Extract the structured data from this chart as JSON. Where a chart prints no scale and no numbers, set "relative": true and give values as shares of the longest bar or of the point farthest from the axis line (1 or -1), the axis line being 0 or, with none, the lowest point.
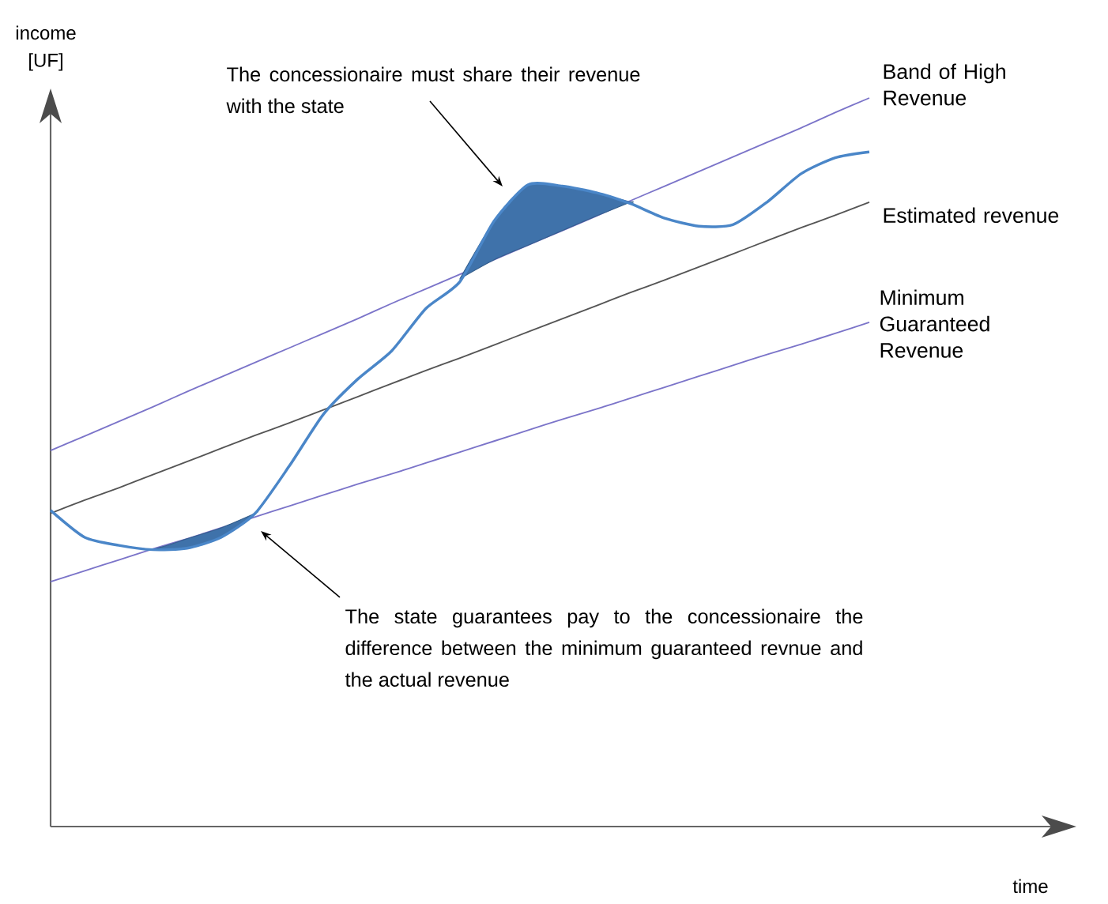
{
  "chart_data": {
    "type": "line",
    "relative": true,
    "ylabel": "income [UF]",
    "categories": [
      null,
      null,
      null,
      null,
      null,
      null,
      null,
      null,
      null,
      null,
      null,
      null,
      null,
      null,
      null,
      null,
      null,
      null,
      null,
      null,
      null,
      null,
      null,
      null,
      null
    ],
    "series": [
      {
        "name": "Band of High Revenue",
        "color": "#7b74c9",
        "values": [
          0.516,
          0.536,
          0.556,
          0.576,
          0.597,
          0.617,
          0.637,
          0.657,
          0.677,
          0.697,
          0.718,
          0.738,
          0.758,
          0.778,
          0.798,
          0.818,
          0.838,
          0.859,
          0.879,
          0.899,
          0.919,
          0.939,
          0.959,
          0.98,
          1.0
        ]
      },
      {
        "name": "Estimated revenue",
        "color": "#555555",
        "values": [
          0.43,
          0.448,
          0.465,
          0.483,
          0.501,
          0.519,
          0.537,
          0.554,
          0.572,
          0.59,
          0.608,
          0.626,
          0.643,
          0.661,
          0.679,
          0.697,
          0.715,
          0.733,
          0.75,
          0.768,
          0.786,
          0.804,
          0.822,
          0.839,
          0.857
        ]
      },
      {
        "name": "Minimum Guaranteed Revenue",
        "color": "#7b74c9",
        "values": [
          0.336,
          0.351,
          0.366,
          0.381,
          0.395,
          0.41,
          0.425,
          0.44,
          0.455,
          0.47,
          0.484,
          0.499,
          0.514,
          0.529,
          0.544,
          0.559,
          0.573,
          0.588,
          0.603,
          0.618,
          0.633,
          0.648,
          0.662,
          0.677,
          0.692
        ]
      },
      {
        "color": "#4a86c8",
        "values": [
          0.434,
          0.397,
          0.386,
          0.38,
          0.382,
          0.397,
          0.43,
          0.495,
          0.566,
          0.614,
          0.653,
          0.711,
          0.748,
          0.831,
          0.881,
          0.879,
          0.87,
          0.855,
          0.835,
          0.824,
          0.826,
          0.857,
          0.896,
          0.918,
          0.926
        ],
        "lower": [
          null,
          null,
          0.386,
          0.38,
          0.382,
          0.397,
          0.43,
          null,
          null,
          null,
          null,
          null,
          0.752,
          0.778,
          0.798,
          0.818,
          0.838,
          0.857,
          null,
          null,
          null,
          null,
          null,
          null,
          null
        ],
        "upper": [
          null,
          null,
          0.386,
          0.381,
          0.395,
          0.41,
          0.43,
          null,
          null,
          null,
          null,
          null,
          0.752,
          0.831,
          0.881,
          0.879,
          0.87,
          0.857,
          null,
          null,
          null,
          null,
          null,
          null,
          null
        ]
      }
    ],
    "annotations": [
      "The concessionaire must share their revenue with the state",
      "The state guarantees pay to the concessionaire the difference between the minimum guaranteed revnue and the actual revenue",
      "time"
    ]
  }
}
